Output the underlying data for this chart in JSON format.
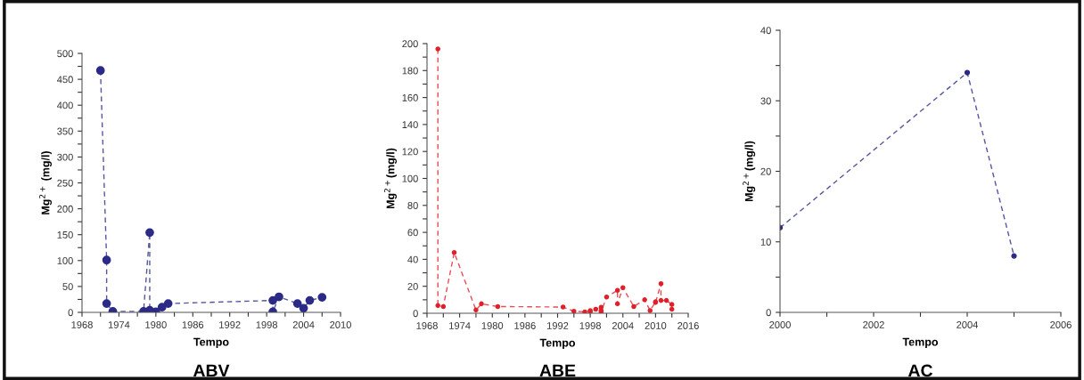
{
  "chart_data": [
    {
      "type": "line",
      "title": "ABV",
      "xlabel": "Tempo",
      "ylabel": "Mg$^{2+}$ (mg/l)",
      "marker": "circle",
      "line_style": "dashed",
      "grid": false,
      "legend": false,
      "xlim": [
        1968,
        2010
      ],
      "xticks": [
        1968,
        {
          "value": 1971,
          "label": null
        },
        1974,
        {
          "value": 1977,
          "label": null
        },
        1980,
        {
          "value": 1983,
          "label": null
        },
        1986,
        {
          "value": 1989,
          "label": null
        },
        1992,
        {
          "value": 1995,
          "label": null
        },
        1998,
        {
          "value": 2001,
          "label": null
        },
        2004,
        {
          "value": 2007,
          "label": null
        },
        2010
      ],
      "ylim": [
        0,
        500
      ],
      "yticks": [
        0,
        {
          "value": 25,
          "label": null
        },
        50,
        {
          "value": 75,
          "label": null
        },
        100,
        {
          "value": 125,
          "label": null
        },
        150,
        {
          "value": 175,
          "label": null
        },
        200,
        {
          "value": 225,
          "label": null
        },
        250,
        {
          "value": 275,
          "label": null
        },
        300,
        {
          "value": 325,
          "label": null
        },
        350,
        {
          "value": 375,
          "label": null
        },
        400,
        {
          "value": 425,
          "label": null
        },
        450,
        {
          "value": 475,
          "label": null
        },
        500
      ],
      "series": [
        {
          "color": "#2b2a86",
          "x": [
            1971,
            1972,
            1972,
            1973,
            1978,
            1979,
            1979,
            1980,
            1981,
            1982,
            1999,
            1999,
            2000,
            2003,
            2004,
            2005,
            2007
          ],
          "values": [
            467,
            101,
            17,
            2,
            2,
            154,
            4,
            1,
            10,
            17,
            23,
            1,
            30,
            17,
            8,
            23,
            29
          ]
        }
      ]
    },
    {
      "type": "line",
      "title": "ABE",
      "xlabel": "Tempo",
      "ylabel": "Mg$^{2+}$(mg/l)",
      "marker": "circle",
      "line_style": "dashed",
      "grid": false,
      "legend": false,
      "xlim": [
        1968,
        2016
      ],
      "xticks": [
        1968,
        {
          "value": 1971,
          "label": null
        },
        1974,
        {
          "value": 1977,
          "label": null
        },
        1980,
        {
          "value": 1983,
          "label": null
        },
        1986,
        {
          "value": 1989,
          "label": null
        },
        1992,
        {
          "value": 1995,
          "label": null
        },
        1998,
        {
          "value": 2001,
          "label": null
        },
        2004,
        {
          "value": 2007,
          "label": null
        },
        2010,
        {
          "value": 2013,
          "label": null
        },
        2016
      ],
      "ylim": [
        0,
        200
      ],
      "yticks": [
        0,
        {
          "value": 10,
          "label": null
        },
        20,
        {
          "value": 30,
          "label": null
        },
        40,
        {
          "value": 50,
          "label": null
        },
        60,
        {
          "value": 70,
          "label": null
        },
        80,
        {
          "value": 90,
          "label": null
        },
        100,
        {
          "value": 110,
          "label": null
        },
        120,
        {
          "value": 130,
          "label": null
        },
        140,
        {
          "value": 150,
          "label": null
        },
        160,
        {
          "value": 170,
          "label": null
        },
        180,
        {
          "value": 190,
          "label": null
        },
        200
      ],
      "series": [
        {
          "color": "#e0202a",
          "x": [
            1970,
            1970,
            1971,
            1973,
            1977,
            1978,
            1981,
            1993,
            1995,
            1997,
            1998,
            1998,
            1999,
            2000,
            2000,
            2000,
            2001,
            2003,
            2003,
            2004,
            2006,
            2008,
            2009,
            2010,
            2010,
            2011,
            2011,
            2012,
            2013,
            2013
          ],
          "values": [
            196,
            5.7,
            5,
            45,
            2.4,
            7,
            5,
            4.6,
            1.5,
            1,
            2,
            1,
            3,
            4.4,
            2,
            1,
            12,
            17,
            7,
            19,
            5,
            10,
            2,
            8.5,
            8,
            22,
            9.5,
            9.5,
            6.5,
            3
          ]
        }
      ]
    },
    {
      "type": "line",
      "title": "AC",
      "xlabel": "Tempo",
      "ylabel": "Mg$^{2+}$(mg/l)",
      "marker": "circle",
      "line_style": "dashed",
      "grid": false,
      "legend": false,
      "xlim": [
        2000,
        2006
      ],
      "xticks": [
        2000,
        {
          "value": 2001,
          "label": null
        },
        2002,
        {
          "value": 2003,
          "label": null
        },
        2004,
        {
          "value": 2005,
          "label": null
        },
        2006
      ],
      "ylim": [
        0,
        40
      ],
      "yticks": [
        0,
        {
          "value": 5,
          "label": null
        },
        10,
        {
          "value": 15,
          "label": null
        },
        20,
        {
          "value": 25,
          "label": null
        },
        30,
        {
          "value": 35,
          "label": null
        },
        40
      ],
      "series": [
        {
          "color": "#2b2a86",
          "x": [
            2000,
            2004,
            2005
          ],
          "values": [
            12,
            34,
            8
          ]
        }
      ]
    }
  ]
}
